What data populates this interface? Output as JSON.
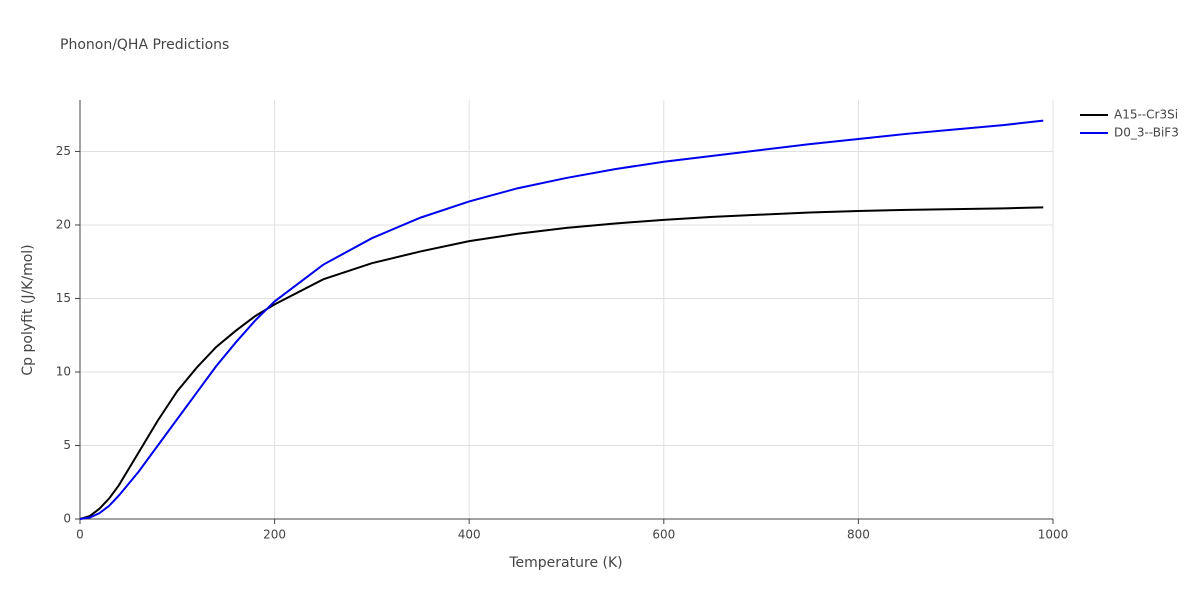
{
  "chart_data": {
    "type": "line",
    "title": "Phonon/QHA Predictions",
    "x_label": "Temperature (K)",
    "y_label": "Cp polyfit (J/K/mol)",
    "x": [
      0,
      10,
      20,
      30,
      40,
      50,
      60,
      80,
      100,
      120,
      140,
      160,
      180,
      200,
      250,
      300,
      350,
      400,
      450,
      500,
      550,
      600,
      650,
      700,
      750,
      800,
      850,
      900,
      950,
      990
    ],
    "series": [
      {
        "name": "A15--Cr3Si",
        "color": "#000000",
        "values": [
          0,
          0.2,
          0.7,
          1.4,
          2.3,
          3.4,
          4.5,
          6.7,
          8.7,
          10.3,
          11.7,
          12.8,
          13.8,
          14.6,
          16.3,
          17.4,
          18.2,
          18.9,
          19.4,
          19.8,
          20.1,
          20.35,
          20.55,
          20.7,
          20.85,
          20.95,
          21.03,
          21.08,
          21.13,
          21.2
        ]
      },
      {
        "name": "D0_3--BiF3",
        "color": "#0000ee",
        "values": [
          0,
          0.1,
          0.4,
          0.9,
          1.6,
          2.4,
          3.2,
          5.0,
          6.8,
          8.6,
          10.4,
          12.0,
          13.5,
          14.8,
          17.3,
          19.1,
          20.5,
          21.6,
          22.5,
          23.2,
          23.8,
          24.3,
          24.7,
          25.1,
          25.5,
          25.85,
          26.2,
          26.5,
          26.8,
          27.1
        ]
      }
    ],
    "xlim": [
      0,
      1000
    ],
    "ylim": [
      0,
      28.5
    ],
    "xticks": [
      0,
      200,
      400,
      600,
      800,
      1000
    ],
    "yticks": [
      0,
      5,
      10,
      15,
      20,
      25
    ],
    "grid": true,
    "legend": "top-right"
  }
}
